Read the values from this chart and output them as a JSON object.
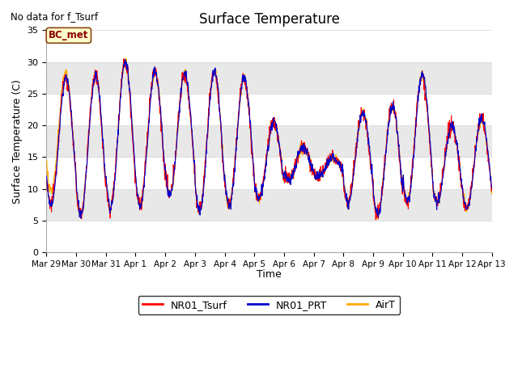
{
  "title": "Surface Temperature",
  "ylabel": "Surface Temperature (C)",
  "xlabel": "Time",
  "top_left_text": "No data for f_Tsurf",
  "bc_label": "BC_met",
  "ylim": [
    0,
    35
  ],
  "yticks": [
    0,
    5,
    10,
    15,
    20,
    25,
    30,
    35
  ],
  "date_labels": [
    "Mar 29",
    "Mar 30",
    "Mar 31",
    "Apr 1",
    "Apr 2",
    "Apr 3",
    "Apr 4",
    "Apr 5",
    "Apr 6",
    "Apr 7",
    "Apr 8",
    "Apr 9",
    "Apr 10",
    "Apr 11",
    "Apr 12",
    "Apr 13"
  ],
  "fig_bg_color": "#ffffff",
  "plot_bg_color": "#ffffff",
  "grid_color": "#e0e0e0",
  "band_color": "#e8e8e8",
  "line_colors": {
    "NR01_Tsurf": "#ff0000",
    "NR01_PRT": "#0000cc",
    "AirT": "#ffaa00"
  },
  "legend_labels": [
    "NR01_Tsurf",
    "NR01_PRT",
    "AirT"
  ],
  "n_days": 15,
  "pts_per_day": 96,
  "figsize": [
    6.4,
    4.8
  ],
  "dpi": 100
}
